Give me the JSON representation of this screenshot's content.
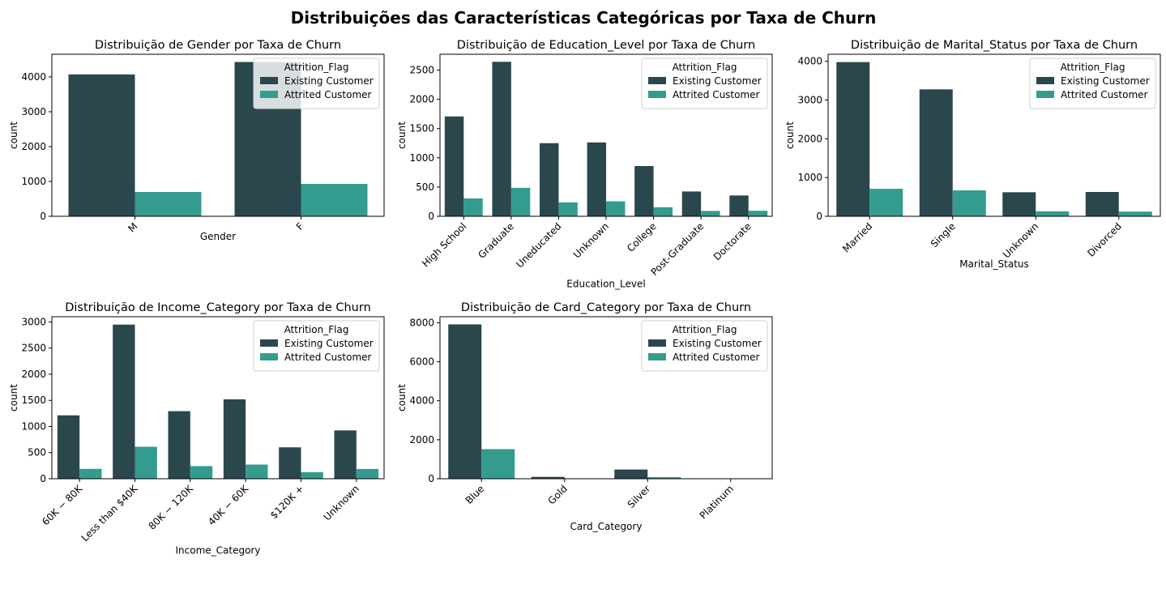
{
  "suptitle": "Distribuições das Características Categóricas por Taxa de Churn",
  "colors": {
    "existing": "#2b474e",
    "attrited": "#349c8e"
  },
  "chart_data": [
    {
      "type": "bar",
      "title": "Distribuição de Gender por Taxa de Churn",
      "xlabel": "Gender",
      "ylabel": "count",
      "categories": [
        "M",
        "F"
      ],
      "series": [
        {
          "name": "Existing Customer",
          "values": [
            4072,
            4428
          ]
        },
        {
          "name": "Attrited Customer",
          "values": [
            697,
            930
          ]
        }
      ],
      "ylim": [
        0,
        4650
      ],
      "yticks": [
        0,
        1000,
        2000,
        3000,
        4000
      ],
      "legend": {
        "title": "Attrition_Flag",
        "loc": "upper right"
      },
      "xtick_rotation": 45
    },
    {
      "type": "bar",
      "title": "Distribuição de Education_Level por Taxa de Churn",
      "xlabel": "Education_Level",
      "ylabel": "count",
      "categories": [
        "High School",
        "Graduate",
        "Uneducated",
        "Unknown",
        "College",
        "Post-Graduate",
        "Doctorate"
      ],
      "series": [
        {
          "name": "Existing Customer",
          "values": [
            1707,
            2641,
            1250,
            1263,
            859,
            424,
            356
          ]
        },
        {
          "name": "Attrited Customer",
          "values": [
            306,
            487,
            237,
            256,
            154,
            92,
            95
          ]
        }
      ],
      "ylim": [
        0,
        2770
      ],
      "yticks": [
        0,
        500,
        1000,
        1500,
        2000,
        2500
      ],
      "legend": {
        "title": "Attrition_Flag",
        "loc": "upper right"
      },
      "xtick_rotation": 45
    },
    {
      "type": "bar",
      "title": "Distribuição de Marital_Status por Taxa de Churn",
      "xlabel": "Marital_Status",
      "ylabel": "count",
      "categories": [
        "Married",
        "Single",
        "Unknown",
        "Divorced"
      ],
      "series": [
        {
          "name": "Existing Customer",
          "values": [
            3978,
            3275,
            620,
            627
          ]
        },
        {
          "name": "Attrited Customer",
          "values": [
            709,
            668,
            129,
            121
          ]
        }
      ],
      "ylim": [
        0,
        4180
      ],
      "yticks": [
        0,
        1000,
        2000,
        3000,
        4000
      ],
      "legend": {
        "title": "Attrition_Flag",
        "loc": "upper right"
      },
      "xtick_rotation": 45
    },
    {
      "type": "bar",
      "title": "Distribuição de Income_Category por Taxa de Churn",
      "xlabel": "Income_Category",
      "ylabel": "count",
      "categories": [
        "$60K - $80K",
        "Less than $40K",
        "$80K - $120K",
        "$40K - $60K",
        "$120K +",
        "Unknown"
      ],
      "tick_labels": [
        "60K − 80K",
        "Less than $40K",
        "80K − 120K",
        "40K − 60K",
        "$120K +",
        "Unknown"
      ],
      "series": [
        {
          "name": "Existing Customer",
          "values": [
            1213,
            2949,
            1293,
            1519,
            601,
            925
          ]
        },
        {
          "name": "Attrited Customer",
          "values": [
            189,
            612,
            242,
            271,
            126,
            187
          ]
        }
      ],
      "ylim": [
        0,
        3100
      ],
      "yticks": [
        0,
        500,
        1000,
        1500,
        2000,
        2500,
        3000
      ],
      "legend": {
        "title": "Attrition_Flag",
        "loc": "upper right"
      },
      "xtick_rotation": 45
    },
    {
      "type": "bar",
      "title": "Distribuição de Card_Category por Taxa de Churn",
      "xlabel": "Card_Category",
      "ylabel": "count",
      "categories": [
        "Blue",
        "Gold",
        "Silver",
        "Platinum"
      ],
      "series": [
        {
          "name": "Existing Customer",
          "values": [
            7917,
            95,
            473,
            15
          ]
        },
        {
          "name": "Attrited Customer",
          "values": [
            1519,
            21,
            82,
            5
          ]
        }
      ],
      "ylim": [
        0,
        8310
      ],
      "yticks": [
        0,
        2000,
        4000,
        6000,
        8000
      ],
      "legend": {
        "title": "Attrition_Flag",
        "loc": "upper right"
      },
      "xtick_rotation": 45
    }
  ]
}
